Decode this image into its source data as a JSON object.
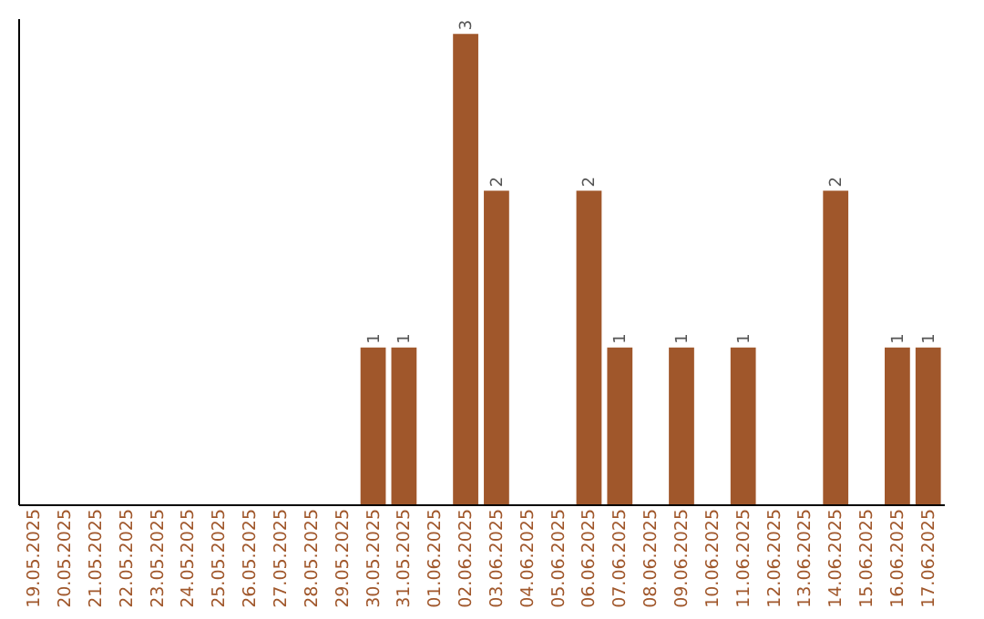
{
  "chart_data": {
    "type": "bar",
    "categories": [
      "19.05.2025",
      "20.05.2025",
      "21.05.2025",
      "22.05.2025",
      "23.05.2025",
      "24.05.2025",
      "25.05.2025",
      "26.05.2025",
      "27.05.2025",
      "28.05.2025",
      "29.05.2025",
      "30.05.2025",
      "31.05.2025",
      "01.06.2025",
      "02.06.2025",
      "03.06.2025",
      "04.06.2025",
      "05.06.2025",
      "06.06.2025",
      "07.06.2025",
      "08.06.2025",
      "09.06.2025",
      "10.06.2025",
      "11.06.2025",
      "12.06.2025",
      "13.06.2025",
      "14.06.2025",
      "15.06.2025",
      "16.06.2025",
      "17.06.2025"
    ],
    "values": [
      0,
      0,
      0,
      0,
      0,
      0,
      0,
      0,
      0,
      0,
      0,
      1,
      1,
      0,
      3,
      2,
      0,
      0,
      2,
      1,
      0,
      1,
      0,
      1,
      0,
      0,
      2,
      0,
      1,
      1
    ],
    "value_labels": [
      null,
      null,
      null,
      null,
      null,
      null,
      null,
      null,
      null,
      null,
      null,
      "1",
      "1",
      null,
      "3",
      "2",
      null,
      null,
      "2",
      "1",
      null,
      "1",
      null,
      "1",
      null,
      null,
      "2",
      null,
      "1",
      "1"
    ],
    "color": "#a0572b",
    "ylim": [
      0,
      3.1
    ],
    "tick_labels": "x"
  }
}
